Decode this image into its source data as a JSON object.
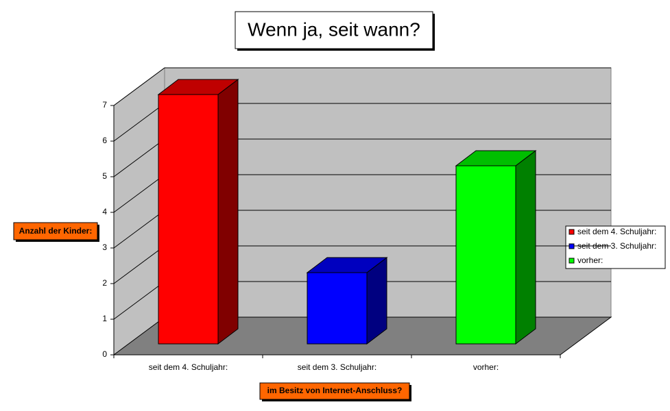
{
  "chart_data": {
    "type": "bar3d",
    "title": "Wenn ja, seit wann?",
    "x_label": "im Besitz von Internet-Anschluss?",
    "y_label": "Anzahl der Kinder:",
    "categories": [
      "seit dem 4. Schuljahr:",
      "seit dem 3. Schuljahr:",
      "vorher:"
    ],
    "values": [
      7,
      2,
      5
    ],
    "colors": [
      "#ff0000",
      "#0000ff",
      "#00ff00"
    ],
    "ylim": [
      0,
      7
    ],
    "yticks": [
      0,
      1,
      2,
      3,
      4,
      5,
      6,
      7
    ],
    "grid": true,
    "legend": "right"
  }
}
